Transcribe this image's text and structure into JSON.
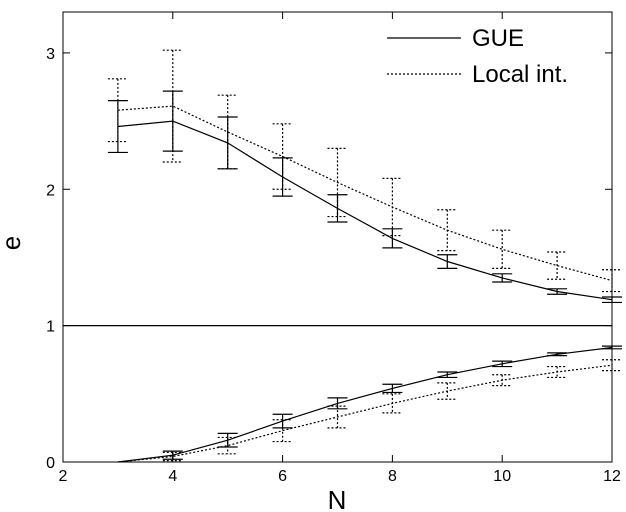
{
  "chart_data": {
    "type": "line",
    "title": "",
    "xlabel": "N",
    "ylabel": "e",
    "xlim": [
      2,
      12
    ],
    "ylim": [
      0,
      3.3
    ],
    "xticks": [
      2,
      4,
      6,
      8,
      10,
      12
    ],
    "yticks": [
      0,
      1,
      2,
      3
    ],
    "x_tick_labels": [
      "2",
      "4",
      "6",
      "8",
      "10",
      "12"
    ],
    "y_tick_labels": [
      "0",
      "1",
      "2",
      "3"
    ],
    "grid": false,
    "legend_position": "top-right",
    "reference_line": {
      "y": 1
    },
    "series": [
      {
        "name": "GUE",
        "style": "solid",
        "color": "#000000",
        "upper": {
          "x": [
            3,
            4,
            5,
            6,
            7,
            8,
            9,
            10,
            11,
            12
          ],
          "y": [
            2.46,
            2.5,
            2.34,
            2.09,
            1.86,
            1.64,
            1.47,
            1.35,
            1.25,
            1.19
          ],
          "err": [
            0.19,
            0.22,
            0.19,
            0.14,
            0.1,
            0.07,
            0.05,
            0.03,
            0.02,
            0.02
          ]
        },
        "lower": {
          "x": [
            3,
            4,
            5,
            6,
            7,
            8,
            9,
            10,
            11,
            12
          ],
          "y": [
            0.0,
            0.05,
            0.16,
            0.3,
            0.43,
            0.54,
            0.64,
            0.72,
            0.79,
            0.84
          ],
          "err": [
            0.0,
            0.03,
            0.05,
            0.05,
            0.04,
            0.03,
            0.02,
            0.02,
            0.01,
            0.01
          ]
        }
      },
      {
        "name": "Local int.",
        "style": "dotted",
        "color": "#000000",
        "upper": {
          "x": [
            3,
            4,
            5,
            6,
            7,
            8,
            9,
            10,
            11,
            12
          ],
          "y": [
            2.58,
            2.61,
            2.42,
            2.24,
            2.05,
            1.87,
            1.7,
            1.56,
            1.44,
            1.33
          ],
          "err": [
            0.23,
            0.41,
            0.27,
            0.24,
            0.25,
            0.21,
            0.15,
            0.14,
            0.1,
            0.08
          ]
        },
        "lower": {
          "x": [
            3,
            4,
            5,
            6,
            7,
            8,
            9,
            10,
            11,
            12
          ],
          "y": [
            0.0,
            0.04,
            0.12,
            0.23,
            0.33,
            0.43,
            0.52,
            0.6,
            0.66,
            0.71
          ],
          "err": [
            0.0,
            0.03,
            0.06,
            0.08,
            0.08,
            0.07,
            0.06,
            0.04,
            0.04,
            0.04
          ]
        }
      }
    ]
  }
}
